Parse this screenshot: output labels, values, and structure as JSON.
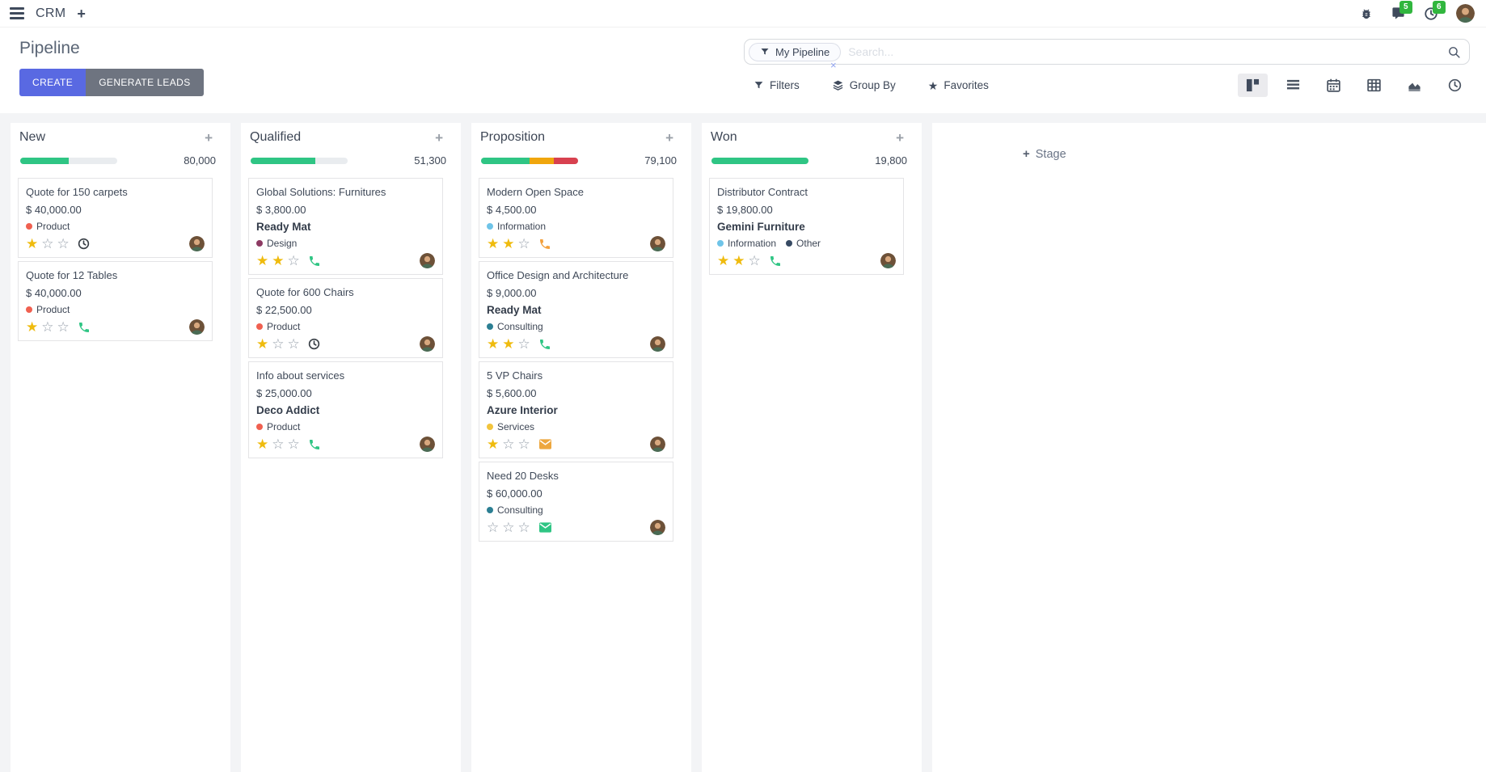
{
  "navbar": {
    "app_name": "CRM",
    "icons": [
      "menu-icon",
      "plus-icon",
      "bug-icon",
      "messages-icon",
      "activities-icon",
      "user-avatar"
    ],
    "messages_badge": "5",
    "activities_badge": "6"
  },
  "control_panel": {
    "title": "Pipeline",
    "create_label": "CREATE",
    "generate_leads_label": "GENERATE LEADS",
    "search": {
      "facet": "My Pipeline",
      "remove_facet": "×",
      "placeholder": "Search..."
    },
    "filters_label": "Filters",
    "group_by_label": "Group By",
    "favorites_label": "Favorites",
    "view_switcher": {
      "active": "kanban",
      "views": [
        "kanban",
        "list",
        "calendar",
        "pivot",
        "graph",
        "activity"
      ]
    }
  },
  "board": {
    "add_stage_plus": "+",
    "add_stage_label": "Stage",
    "column_add_label": "+",
    "colors": {
      "progress_green": "#2fc584",
      "progress_yellow": "#f0a60d",
      "progress_red": "#d8414f",
      "star_gold": "#efbb0e",
      "badge_green": "#31b63e",
      "create_button": "#5969e2"
    },
    "columns": [
      {
        "name": "New",
        "total": "80,000",
        "progress": [
          {
            "color": "#2fc584",
            "pct": 50
          }
        ],
        "cards": [
          {
            "title": "Quote for 150 carpets",
            "amount": "$ 40,000.00",
            "partner": null,
            "tags": [
              {
                "label": "Product",
                "color": "#f06050"
              }
            ],
            "stars": 1,
            "activity": "clock",
            "activity_color": "#383e45"
          },
          {
            "title": "Quote for 12 Tables",
            "amount": "$ 40,000.00",
            "partner": null,
            "tags": [
              {
                "label": "Product",
                "color": "#f06050"
              }
            ],
            "stars": 1,
            "activity": "phone",
            "activity_color": "#2fc584"
          }
        ]
      },
      {
        "name": "Qualified",
        "total": "51,300",
        "progress": [
          {
            "color": "#2fc584",
            "pct": 67
          }
        ],
        "cards": [
          {
            "title": "Global Solutions: Furnitures",
            "amount": "$ 3,800.00",
            "partner": "Ready Mat",
            "tags": [
              {
                "label": "Design",
                "color": "#8d3a63"
              }
            ],
            "stars": 2,
            "activity": "phone",
            "activity_color": "#2fc584"
          },
          {
            "title": "Quote for 600 Chairs",
            "amount": "$ 22,500.00",
            "partner": null,
            "tags": [
              {
                "label": "Product",
                "color": "#f06050"
              }
            ],
            "stars": 1,
            "activity": "clock",
            "activity_color": "#383e45"
          },
          {
            "title": "Info about services",
            "amount": "$ 25,000.00",
            "partner": "Deco Addict",
            "tags": [
              {
                "label": "Product",
                "color": "#f06050"
              }
            ],
            "stars": 1,
            "activity": "phone",
            "activity_color": "#2fc584"
          }
        ]
      },
      {
        "name": "Proposition",
        "total": "79,100",
        "progress": [
          {
            "color": "#2fc584",
            "pct": 50
          },
          {
            "color": "#f0a60d",
            "pct": 25
          },
          {
            "color": "#d8414f",
            "pct": 25
          }
        ],
        "cards": [
          {
            "title": "Modern Open Space",
            "amount": "$ 4,500.00",
            "partner": null,
            "tags": [
              {
                "label": "Information",
                "color": "#6fc4e8"
              }
            ],
            "stars": 2,
            "activity": "phone",
            "activity_color": "#f3a03c"
          },
          {
            "title": "Office Design and Architecture",
            "amount": "$ 9,000.00",
            "partner": "Ready Mat",
            "tags": [
              {
                "label": "Consulting",
                "color": "#2c7f93"
              }
            ],
            "stars": 2,
            "activity": "phone",
            "activity_color": "#2fc584"
          },
          {
            "title": "5 VP Chairs",
            "amount": "$ 5,600.00",
            "partner": "Azure Interior",
            "tags": [
              {
                "label": "Services",
                "color": "#f2c43d"
              }
            ],
            "stars": 1,
            "activity": "email",
            "activity_color": "#eda73f"
          },
          {
            "title": "Need 20 Desks",
            "amount": "$ 60,000.00",
            "partner": null,
            "tags": [
              {
                "label": "Consulting",
                "color": "#2c7f93"
              }
            ],
            "stars": 0,
            "activity": "email",
            "activity_color": "#2fc584"
          }
        ]
      },
      {
        "name": "Won",
        "total": "19,800",
        "progress": [
          {
            "color": "#2fc584",
            "pct": 100
          }
        ],
        "cards": [
          {
            "title": "Distributor Contract",
            "amount": "$ 19,800.00",
            "partner": "Gemini Furniture",
            "tags": [
              {
                "label": "Information",
                "color": "#6fc4e8"
              },
              {
                "label": "Other",
                "color": "#374a63"
              }
            ],
            "stars": 2,
            "activity": "phone",
            "activity_color": "#2fc584"
          }
        ]
      }
    ]
  }
}
